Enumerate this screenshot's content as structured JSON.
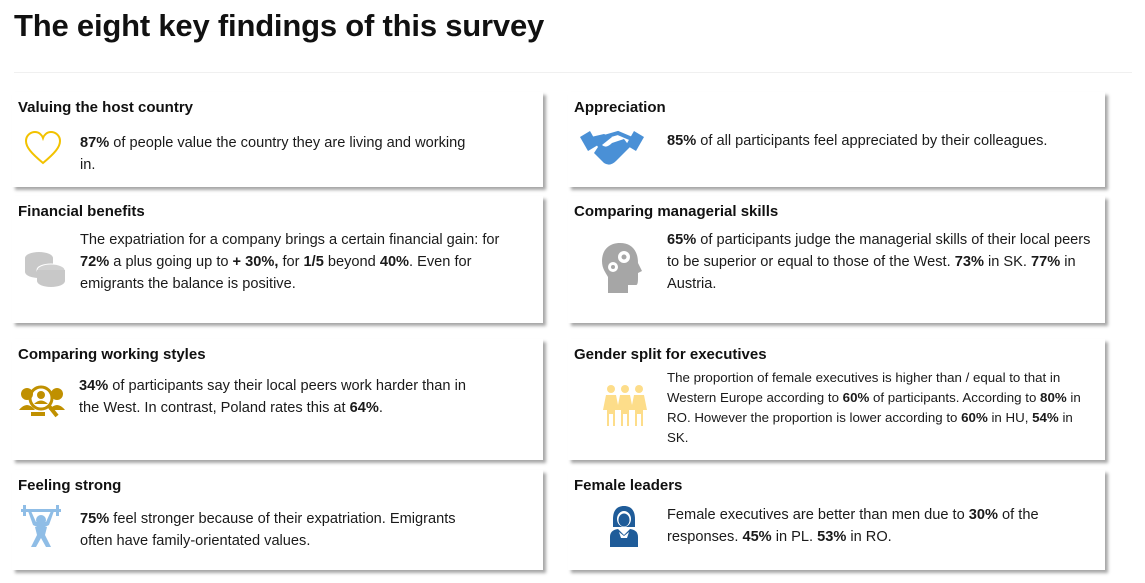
{
  "title": "The eight key findings of this survey",
  "colors": {
    "heart": "#f2c200",
    "coins": "#c8c8c8",
    "people_search": "#c09000",
    "weightlifter": "#8fbde6",
    "handshake": "#4a90d6",
    "head_gears": "#a6a6a6",
    "three_women": "#fddd8a",
    "female_leader": "#1f5c99"
  },
  "findings": [
    {
      "heading": "Valuing the host country",
      "icon": "heart-icon",
      "text": [
        {
          "t": "87%",
          "b": true
        },
        {
          "t": " of people value the country they are living and working in."
        }
      ]
    },
    {
      "heading": "Financial benefits",
      "icon": "coins-icon",
      "text": [
        {
          "t": "The expatriation for a company brings a certain financial gain: for "
        },
        {
          "t": "72%",
          "b": true
        },
        {
          "t": " a plus going up to "
        },
        {
          "t": "+ 30%,",
          "b": true
        },
        {
          "t": " for "
        },
        {
          "t": "1/5",
          "b": true
        },
        {
          "t": " beyond "
        },
        {
          "t": "40%",
          "b": true
        },
        {
          "t": ". Even for emigrants the balance is positive."
        }
      ]
    },
    {
      "heading": "Comparing working styles",
      "icon": "people-search-icon",
      "text": [
        {
          "t": "34%",
          "b": true
        },
        {
          "t": " of participants say their local peers work harder than in the West. In contrast, Poland rates this at "
        },
        {
          "t": "64%",
          "b": true
        },
        {
          "t": "."
        }
      ]
    },
    {
      "heading": "Feeling strong",
      "icon": "weightlifter-icon",
      "text": [
        {
          "t": "75%",
          "b": true
        },
        {
          "t": " feel stronger because of their expatriation. Emigrants often have family-orientated values."
        }
      ]
    },
    {
      "heading": "Appreciation",
      "icon": "handshake-icon",
      "text": [
        {
          "t": "85%",
          "b": true
        },
        {
          "t": " of all participants feel appreciated by their colleagues."
        }
      ]
    },
    {
      "heading": "Comparing managerial skills",
      "icon": "head-gears-icon",
      "text": [
        {
          "t": "65%",
          "b": true
        },
        {
          "t": " of participants judge the managerial skills of their local peers to be superior or equal to those of the West. "
        },
        {
          "t": "73%",
          "b": true
        },
        {
          "t": " in SK. "
        },
        {
          "t": "77%",
          "b": true
        },
        {
          "t": " in Austria."
        }
      ]
    },
    {
      "heading": "Gender split for executives",
      "icon": "three-women-icon",
      "text": [
        {
          "t": "The proportion of female executives is higher  than / equal to that in Western Europe according to "
        },
        {
          "t": "60%",
          "b": true
        },
        {
          "t": " of participants. According to "
        },
        {
          "t": "80%",
          "b": true
        },
        {
          "t": " in RO. However the proportion is lower according to "
        },
        {
          "t": "60%",
          "b": true
        },
        {
          "t": " in HU, "
        },
        {
          "t": "54%",
          "b": true
        },
        {
          "t": " in SK."
        }
      ]
    },
    {
      "heading": "Female leaders",
      "icon": "female-leader-icon",
      "text": [
        {
          "t": "Female executives are better than men due to "
        },
        {
          "t": "30%",
          "b": true
        },
        {
          "t": " of the responses. "
        },
        {
          "t": "45% ",
          "b": true
        },
        {
          "t": "in PL. "
        },
        {
          "t": "53%",
          "b": true
        },
        {
          "t": " in RO."
        }
      ]
    }
  ]
}
